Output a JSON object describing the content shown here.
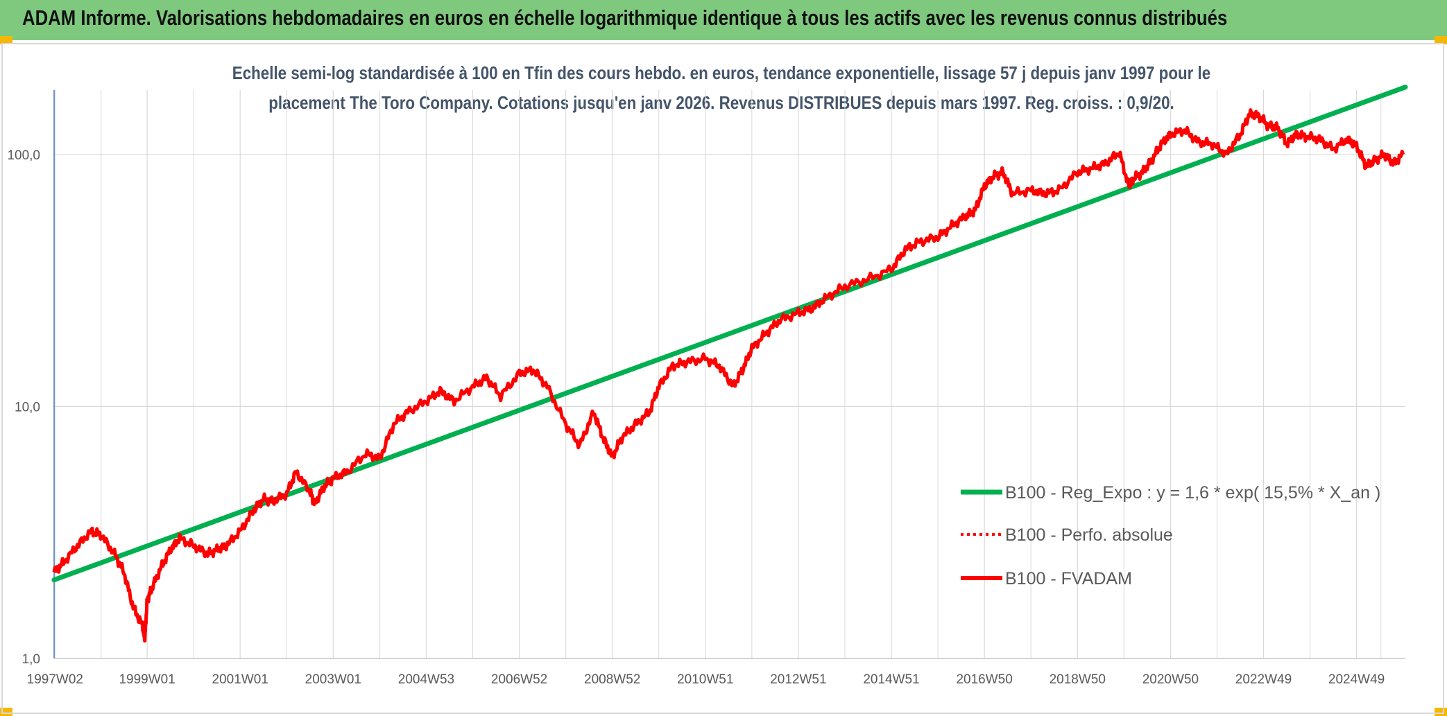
{
  "header": {
    "title": "ADAM Informe. Valorisations hebdomadaires en euros en échelle logarithmique identique à tous les actifs avec les revenus connus distribués"
  },
  "subtitle": {
    "line1": "Echelle semi-log standardisée à 100 en Tfin des cours hebdo. en euros, tendance exponentielle, lissage 57 j depuis janv 1997 pour le",
    "line2": "placement The Toro Company. Cotations jusqu'en janv 2026. Revenus DISTRIBUES depuis mars 1997. Reg. croiss. : 0,9/20."
  },
  "colors": {
    "header_bg": "#7fc97f",
    "trend": "#00b050",
    "fvadam": "#ff0000",
    "perfo": "#ff0000",
    "grid": "#d9d9d9",
    "corner": "#f5b800"
  },
  "chart_data": {
    "type": "line",
    "scale": "log",
    "ylim": [
      1,
      180
    ],
    "ytick_labels": [
      "1,0",
      "10,0",
      "100,0"
    ],
    "ytick_values": [
      1,
      10,
      100
    ],
    "xlim": [
      1997.0,
      2026.05
    ],
    "xtick_labels": [
      "1997W02",
      "1999W01",
      "2001W01",
      "2003W01",
      "2004W53",
      "2006W52",
      "2008W52",
      "2010W51",
      "2012W51",
      "2014W51",
      "2016W50",
      "2018W50",
      "2020W50",
      "2022W49",
      "2024W49"
    ],
    "xtick_values": [
      1997.02,
      1999.0,
      2001.0,
      2003.0,
      2005.0,
      2007.0,
      2009.0,
      2011.0,
      2013.0,
      2015.0,
      2017.0,
      2019.0,
      2021.0,
      2023.0,
      2025.0
    ],
    "series": [
      {
        "name": "B100 - Reg_Expo : y = 1,6 * exp( 15,5% *  X_an )",
        "style": "solid-green",
        "x": [
          1997.0,
          2026.05
        ],
        "y": [
          2.05,
          185
        ]
      },
      {
        "name": "B100 - Perfo. absolue",
        "style": "dotted-red",
        "x": [],
        "y": []
      },
      {
        "name": "B100 - FVADAM",
        "style": "solid-red",
        "x": [
          1997.0,
          1997.2,
          1997.5,
          1997.8,
          1998.0,
          1998.3,
          1998.5,
          1998.7,
          1998.9,
          1998.95,
          1999.0,
          1999.1,
          1999.3,
          1999.5,
          1999.7,
          2000.0,
          2000.3,
          2000.5,
          2000.7,
          2001.0,
          2001.3,
          2001.5,
          2001.7,
          2002.0,
          2002.2,
          2002.5,
          2002.6,
          2002.8,
          2003.0,
          2003.3,
          2003.7,
          2004.0,
          2004.3,
          2004.6,
          2005.0,
          2005.3,
          2005.6,
          2006.0,
          2006.3,
          2006.6,
          2007.0,
          2007.3,
          2007.6,
          2008.0,
          2008.3,
          2008.6,
          2008.8,
          2009.0,
          2009.2,
          2009.5,
          2009.8,
          2010.0,
          2010.3,
          2010.6,
          2011.0,
          2011.3,
          2011.6,
          2011.8,
          2012.0,
          2012.3,
          2012.6,
          2013.0,
          2013.3,
          2013.6,
          2014.0,
          2014.5,
          2015.0,
          2015.3,
          2015.6,
          2016.0,
          2016.3,
          2016.6,
          2016.8,
          2017.0,
          2017.2,
          2017.4,
          2017.6,
          2018.0,
          2018.3,
          2018.6,
          2019.0,
          2019.3,
          2019.6,
          2019.9,
          2020.1,
          2020.2,
          2020.4,
          2020.6,
          2020.8,
          2021.0,
          2021.3,
          2021.6,
          2021.9,
          2022.2,
          2022.5,
          2022.7,
          2022.9,
          2023.1,
          2023.3,
          2023.5,
          2023.7,
          2023.9,
          2024.2,
          2024.5,
          2024.8,
          2025.0,
          2025.2,
          2025.4,
          2025.6,
          2025.8,
          2026.0
        ],
        "y": [
          2.2,
          2.4,
          2.8,
          3.2,
          3.1,
          2.6,
          2.2,
          1.6,
          1.35,
          1.2,
          1.7,
          1.9,
          2.3,
          2.7,
          3.0,
          2.8,
          2.6,
          2.7,
          2.8,
          3.2,
          3.9,
          4.3,
          4.2,
          4.5,
          5.5,
          4.6,
          4.1,
          4.8,
          5.2,
          5.5,
          6.5,
          6.2,
          8.5,
          9.5,
          10.5,
          11.5,
          10.5,
          12.0,
          13.0,
          11.0,
          13.5,
          14.0,
          12.0,
          8.5,
          7.0,
          9.5,
          7.5,
          6.3,
          7.5,
          8.5,
          9.5,
          12.0,
          14.5,
          15.0,
          15.5,
          14.5,
          12.0,
          14.0,
          17.0,
          19.5,
          22.0,
          23.5,
          24.5,
          27.0,
          30.0,
          32.0,
          35.0,
          42.0,
          45.0,
          47.0,
          52.0,
          57.0,
          60.0,
          75.0,
          82.0,
          85.0,
          70.0,
          72.0,
          70.0,
          72.0,
          85.0,
          88.0,
          92.0,
          102.0,
          75.0,
          80.0,
          85.0,
          95.0,
          110.0,
          120.0,
          125.0,
          112.0,
          110.0,
          100.0,
          120.0,
          145.0,
          142.0,
          130.0,
          128.0,
          110.0,
          120.0,
          118.0,
          115.0,
          105.0,
          115.0,
          108.0,
          90.0,
          95.0,
          100.0,
          92.0,
          100.0
        ]
      }
    ],
    "legend_position": "bottom-right",
    "grid": "vertical-and-horizontal"
  }
}
